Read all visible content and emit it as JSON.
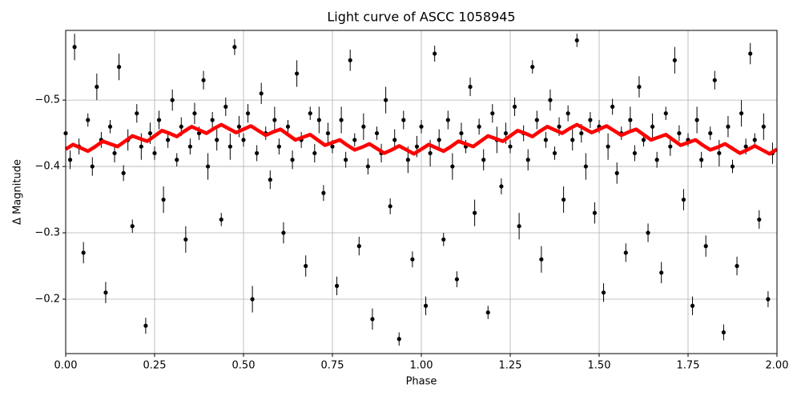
{
  "chart_data": {
    "type": "scatter",
    "title": "Light curve of ASCC 1058945",
    "xlabel": "Phase",
    "ylabel": "Δ Magnitude",
    "xlim": [
      0,
      2
    ],
    "ylim": [
      -0.118,
      -0.605
    ],
    "xticks": [
      {
        "value": 0,
        "label": "0.00"
      },
      {
        "value": 0.25,
        "label": "0.25"
      },
      {
        "value": 0.5,
        "label": "0.50"
      },
      {
        "value": 0.75,
        "label": "0.75"
      },
      {
        "value": 1,
        "label": "1.00"
      },
      {
        "value": 1.25,
        "label": "1.25"
      },
      {
        "value": 1.5,
        "label": "1.50"
      },
      {
        "value": 1.75,
        "label": "1.75"
      },
      {
        "value": 2,
        "label": "2.00"
      }
    ],
    "yticks": [
      {
        "value": -0.5,
        "label": "−0.5"
      },
      {
        "value": -0.4,
        "label": "−0.4"
      },
      {
        "value": -0.3,
        "label": "−0.3"
      },
      {
        "value": -0.2,
        "label": "−0.2"
      }
    ],
    "grid": true,
    "points": {
      "color": "#000000",
      "x": [
        0,
        0.0125,
        0.025,
        0.0375,
        0.05,
        0.0625,
        0.075,
        0.0875,
        0.1,
        0.1125,
        0.125,
        0.1375,
        0.15,
        0.1625,
        0.175,
        0.1875,
        0.2,
        0.2125,
        0.225,
        0.2375,
        0.25,
        0.2625,
        0.275,
        0.2875,
        0.3,
        0.3125,
        0.325,
        0.3375,
        0.35,
        0.3625,
        0.375,
        0.3875,
        0.4,
        0.4125,
        0.425,
        0.4375,
        0.45,
        0.4625,
        0.475,
        0.4875,
        0.5,
        0.5125,
        0.525,
        0.5375,
        0.55,
        0.5625,
        0.575,
        0.5875,
        0.6,
        0.6125,
        0.625,
        0.6375,
        0.65,
        0.6625,
        0.675,
        0.6875,
        0.7,
        0.7125,
        0.725,
        0.7375,
        0.75,
        0.7625,
        0.775,
        0.7875,
        0.8,
        0.8125,
        0.825,
        0.8375,
        0.85,
        0.8625,
        0.875,
        0.8875,
        0.9,
        0.9125,
        0.925,
        0.9375,
        0.95,
        0.9625,
        0.975,
        0.9875,
        1,
        1.0125,
        1.025,
        1.0375,
        1.05,
        1.0625,
        1.075,
        1.0875,
        1.1,
        1.1125,
        1.125,
        1.1375,
        1.15,
        1.1625,
        1.175,
        1.1875,
        1.2,
        1.2125,
        1.225,
        1.2375,
        1.25,
        1.2625,
        1.275,
        1.2875,
        1.3,
        1.3125,
        1.325,
        1.3375,
        1.35,
        1.3625,
        1.375,
        1.3875,
        1.4,
        1.4125,
        1.425,
        1.4375,
        1.45,
        1.4625,
        1.475,
        1.4875,
        1.5,
        1.5125,
        1.525,
        1.5375,
        1.55,
        1.5625,
        1.575,
        1.5875,
        1.6,
        1.6125,
        1.625,
        1.6375,
        1.65,
        1.6625,
        1.675,
        1.6875,
        1.7,
        1.7125,
        1.725,
        1.7375,
        1.75,
        1.7625,
        1.775,
        1.7875,
        1.8,
        1.8125,
        1.825,
        1.8375,
        1.85,
        1.8625,
        1.875,
        1.8875,
        1.9,
        1.9125,
        1.925,
        1.9375,
        1.95,
        1.9625,
        1.975,
        1.9875
      ],
      "y": [
        -0.45,
        -0.41,
        -0.58,
        -0.43,
        -0.27,
        -0.47,
        -0.4,
        -0.52,
        -0.44,
        -0.21,
        -0.46,
        -0.42,
        -0.55,
        -0.39,
        -0.44,
        -0.31,
        -0.48,
        -0.43,
        -0.16,
        -0.45,
        -0.42,
        -0.47,
        -0.35,
        -0.44,
        -0.5,
        -0.41,
        -0.46,
        -0.29,
        -0.43,
        -0.48,
        -0.45,
        -0.53,
        -0.4,
        -0.47,
        -0.44,
        -0.32,
        -0.49,
        -0.43,
        -0.58,
        -0.46,
        -0.44,
        -0.48,
        -0.2,
        -0.42,
        -0.51,
        -0.45,
        -0.38,
        -0.47,
        -0.43,
        -0.3,
        -0.46,
        -0.41,
        -0.54,
        -0.44,
        -0.25,
        -0.48,
        -0.42,
        -0.47,
        -0.36,
        -0.45,
        -0.43,
        -0.22,
        -0.47,
        -0.41,
        -0.56,
        -0.44,
        -0.28,
        -0.46,
        -0.4,
        -0.17,
        -0.45,
        -0.42,
        -0.5,
        -0.34,
        -0.44,
        -0.14,
        -0.47,
        -0.41,
        -0.26,
        -0.43,
        -0.46,
        -0.19,
        -0.42,
        -0.57,
        -0.44,
        -0.29,
        -0.47,
        -0.4,
        -0.23,
        -0.45,
        -0.43,
        -0.52,
        -0.33,
        -0.46,
        -0.41,
        -0.18,
        -0.48,
        -0.44,
        -0.37,
        -0.45,
        -0.43,
        -0.49,
        -0.31,
        -0.45,
        -0.41,
        -0.55,
        -0.47,
        -0.26,
        -0.44,
        -0.5,
        -0.42,
        -0.46,
        -0.35,
        -0.48,
        -0.44,
        -0.59,
        -0.45,
        -0.4,
        -0.47,
        -0.33,
        -0.46,
        -0.21,
        -0.43,
        -0.49,
        -0.39,
        -0.45,
        -0.27,
        -0.47,
        -0.42,
        -0.52,
        -0.44,
        -0.3,
        -0.46,
        -0.41,
        -0.24,
        -0.48,
        -0.43,
        -0.56,
        -0.45,
        -0.35,
        -0.44,
        -0.19,
        -0.47,
        -0.41,
        -0.28,
        -0.45,
        -0.53,
        -0.42,
        -0.15,
        -0.46,
        -0.4,
        -0.25,
        -0.48,
        -0.43,
        -0.57,
        -0.44,
        -0.32,
        -0.46,
        -0.2,
        -0.42
      ],
      "err": [
        0.01,
        0.014,
        0.02,
        0.012,
        0.016,
        0.01,
        0.014,
        0.02,
        0.012,
        0.016,
        0.01,
        0.014,
        0.02,
        0.012,
        0.016,
        0.01,
        0.014,
        0.02,
        0.012,
        0.016,
        0.01,
        0.014,
        0.02,
        0.012,
        0.016,
        0.01,
        0.014,
        0.02,
        0.012,
        0.016,
        0.01,
        0.014,
        0.02,
        0.012,
        0.016,
        0.01,
        0.014,
        0.02,
        0.012,
        0.016,
        0.01,
        0.014,
        0.02,
        0.012,
        0.016,
        0.01,
        0.014,
        0.02,
        0.012,
        0.016,
        0.01,
        0.014,
        0.02,
        0.012,
        0.016,
        0.01,
        0.014,
        0.02,
        0.012,
        0.016,
        0.01,
        0.014,
        0.02,
        0.012,
        0.016,
        0.01,
        0.014,
        0.02,
        0.012,
        0.016,
        0.01,
        0.014,
        0.02,
        0.012,
        0.016,
        0.01,
        0.014,
        0.02,
        0.012,
        0.016,
        0.01,
        0.014,
        0.02,
        0.012,
        0.016,
        0.01,
        0.014,
        0.02,
        0.012,
        0.016,
        0.01,
        0.014,
        0.02,
        0.012,
        0.016,
        0.01,
        0.014,
        0.02,
        0.012,
        0.016,
        0.01,
        0.014,
        0.02,
        0.012,
        0.016,
        0.01,
        0.014,
        0.02,
        0.012,
        0.016,
        0.01,
        0.014,
        0.02,
        0.012,
        0.016,
        0.01,
        0.014,
        0.02,
        0.012,
        0.016,
        0.01,
        0.014,
        0.02,
        0.012,
        0.016,
        0.01,
        0.014,
        0.02,
        0.012,
        0.016,
        0.01,
        0.014,
        0.02,
        0.012,
        0.016,
        0.01,
        0.014,
        0.02,
        0.012,
        0.016,
        0.01,
        0.014,
        0.02,
        0.012,
        0.016,
        0.01,
        0.014,
        0.02,
        0.012,
        0.016,
        0.01,
        0.014,
        0.02,
        0.012,
        0.016,
        0.01,
        0.014,
        0.02,
        0.012,
        0.016
      ]
    },
    "model": {
      "color": "#ff0000",
      "x": [
        0,
        0.0208,
        0.0417,
        0.0625,
        0.0833,
        0.1042,
        0.125,
        0.1458,
        0.1667,
        0.1875,
        0.2083,
        0.2292,
        0.25,
        0.2708,
        0.2917,
        0.3125,
        0.3333,
        0.3542,
        0.375,
        0.3958,
        0.4167,
        0.4375,
        0.4583,
        0.4792,
        0.5,
        0.5208,
        0.5417,
        0.5625,
        0.5833,
        0.6042,
        0.625,
        0.6458,
        0.6667,
        0.6875,
        0.7083,
        0.7292,
        0.75,
        0.7708,
        0.7917,
        0.8125,
        0.8333,
        0.8542,
        0.875,
        0.8958,
        0.9167,
        0.9375,
        0.9583,
        0.9792,
        1,
        1.0208,
        1.0417,
        1.0625,
        1.0833,
        1.1042,
        1.125,
        1.1458,
        1.1667,
        1.1875,
        1.2083,
        1.2292,
        1.25,
        1.2708,
        1.2917,
        1.3125,
        1.3333,
        1.3542,
        1.375,
        1.3958,
        1.4167,
        1.4375,
        1.4583,
        1.4792,
        1.5,
        1.5208,
        1.5417,
        1.5625,
        1.5833,
        1.6042,
        1.625,
        1.6458,
        1.6667,
        1.6875,
        1.7083,
        1.7292,
        1.75,
        1.7708,
        1.7917,
        1.8125,
        1.8333,
        1.8542,
        1.875,
        1.8958,
        1.9167,
        1.9375,
        1.9583,
        1.9792,
        2
      ],
      "y": [
        -0.426,
        -0.433,
        -0.428,
        -0.423,
        -0.43,
        -0.438,
        -0.434,
        -0.43,
        -0.438,
        -0.446,
        -0.442,
        -0.438,
        -0.446,
        -0.454,
        -0.45,
        -0.445,
        -0.453,
        -0.46,
        -0.455,
        -0.45,
        -0.457,
        -0.463,
        -0.457,
        -0.451,
        -0.456,
        -0.461,
        -0.454,
        -0.447,
        -0.452,
        -0.456,
        -0.448,
        -0.44,
        -0.444,
        -0.448,
        -0.44,
        -0.432,
        -0.436,
        -0.44,
        -0.432,
        -0.425,
        -0.429,
        -0.434,
        -0.427,
        -0.42,
        -0.425,
        -0.431,
        -0.425,
        -0.419,
        -0.426,
        -0.433,
        -0.428,
        -0.423,
        -0.43,
        -0.438,
        -0.434,
        -0.43,
        -0.438,
        -0.446,
        -0.442,
        -0.438,
        -0.446,
        -0.454,
        -0.45,
        -0.445,
        -0.453,
        -0.46,
        -0.455,
        -0.45,
        -0.457,
        -0.463,
        -0.457,
        -0.451,
        -0.456,
        -0.461,
        -0.454,
        -0.447,
        -0.452,
        -0.456,
        -0.448,
        -0.44,
        -0.444,
        -0.448,
        -0.44,
        -0.432,
        -0.436,
        -0.44,
        -0.432,
        -0.425,
        -0.429,
        -0.434,
        -0.427,
        -0.42,
        -0.425,
        -0.431,
        -0.425,
        -0.419,
        -0.426
      ]
    }
  }
}
